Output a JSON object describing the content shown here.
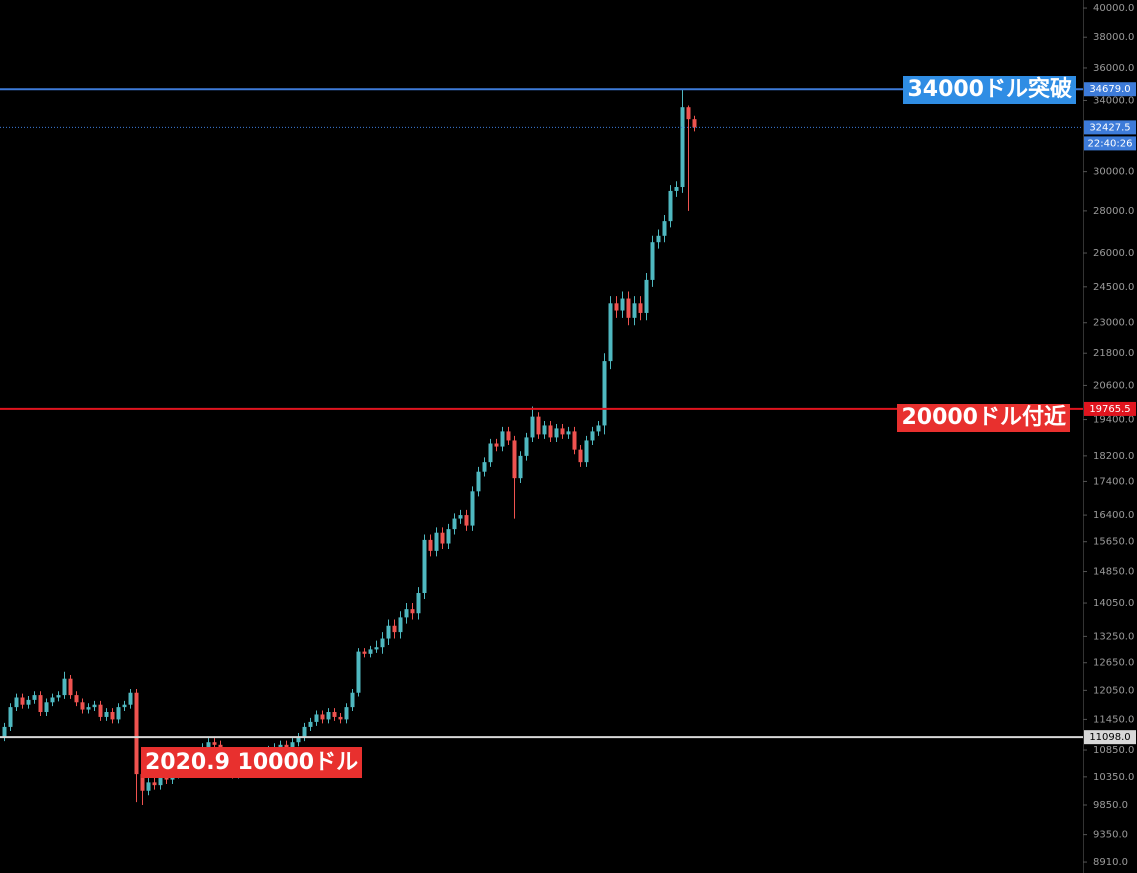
{
  "chart_data": {
    "type": "candlestick",
    "log_scale": true,
    "up_color": "#4fb8c0",
    "down_color": "#ef5350",
    "ylim": [
      8740,
      40570
    ],
    "yticks": [
      {
        "value": 40000,
        "label": "40000.0"
      },
      {
        "value": 38000,
        "label": "38000.0"
      },
      {
        "value": 36000,
        "label": "36000.0"
      },
      {
        "value": 34000,
        "label": "34000.0"
      },
      {
        "value": 30000,
        "label": "30000.0"
      },
      {
        "value": 28000,
        "label": "28000.0"
      },
      {
        "value": 26000,
        "label": "26000.0"
      },
      {
        "value": 24500,
        "label": "24500.0"
      },
      {
        "value": 23000,
        "label": "23000.0"
      },
      {
        "value": 21800,
        "label": "21800.0"
      },
      {
        "value": 20600,
        "label": "20600.0"
      },
      {
        "value": 19400,
        "label": "19400.0"
      },
      {
        "value": 18200,
        "label": "18200.0"
      },
      {
        "value": 17400,
        "label": "17400.0"
      },
      {
        "value": 16400,
        "label": "16400.0"
      },
      {
        "value": 15650,
        "label": "15650.0"
      },
      {
        "value": 14850,
        "label": "14850.0"
      },
      {
        "value": 14050,
        "label": "14050.0"
      },
      {
        "value": 13250,
        "label": "13250.0"
      },
      {
        "value": 12650,
        "label": "12650.0"
      },
      {
        "value": 12050,
        "label": "12050.0"
      },
      {
        "value": 11450,
        "label": "11450.0"
      },
      {
        "value": 10850,
        "label": "10850.0"
      },
      {
        "value": 10350,
        "label": "10350.0"
      },
      {
        "value": 9850,
        "label": "9850.0"
      },
      {
        "value": 9350,
        "label": "9350.0"
      },
      {
        "value": 8910,
        "label": "8910.0"
      }
    ],
    "levels": [
      {
        "value": 34679,
        "label": "34679.0",
        "color": "#3d7bd9",
        "style": "solid"
      },
      {
        "value": 32427.5,
        "label": "32427.5",
        "color": "#3d7bd9",
        "style": "dotted"
      },
      {
        "value": 19765.5,
        "label": "19765.5",
        "color": "#e0141e",
        "style": "solid"
      },
      {
        "value": 11098,
        "label": "11098.0",
        "color": "#d8d8d8",
        "style": "solid"
      }
    ],
    "countdown": "22:40:26",
    "annotations": [
      {
        "text": "34000ドル突破",
        "color": "#2f8de4"
      },
      {
        "text": "20000ドル付近",
        "color": "#e8302e"
      },
      {
        "text": "2020.9 10000ドル",
        "color": "#e8302e"
      }
    ],
    "open": [
      11100,
      11300,
      11700,
      11900,
      11750,
      11850,
      11950,
      11600,
      11800,
      11900,
      11950,
      12300,
      11950,
      11800,
      11650,
      11700,
      11750,
      11500,
      11600,
      11450,
      11700,
      11750,
      12000,
      10400,
      10100,
      10250,
      10200,
      10350,
      10300,
      10400,
      10450,
      10550,
      10700,
      10800,
      10900,
      11000,
      10950,
      10700,
      10600,
      10400,
      10500,
      10650,
      10750,
      10700,
      10800,
      10850,
      10900,
      10950,
      10900,
      11000,
      11100,
      11300,
      11400,
      11550,
      11450,
      11600,
      11500,
      11450,
      11700,
      12000,
      12900,
      12850,
      12950,
      13000,
      13200,
      13500,
      13350,
      13700,
      13900,
      13800,
      14300,
      15700,
      15400,
      15900,
      15600,
      16000,
      16300,
      16400,
      16100,
      17100,
      17700,
      18000,
      18600,
      18500,
      19000,
      18700,
      17500,
      18200,
      18800,
      19500,
      18900,
      19200,
      18800,
      19100,
      18900,
      19000,
      18400,
      18000,
      18700,
      19000,
      19200,
      21500,
      23800,
      23500,
      24000,
      23200,
      23800,
      23400,
      24800,
      26500,
      26800,
      27500,
      29000,
      29200,
      33600,
      32900
    ],
    "high": [
      11380,
      11780,
      11980,
      11980,
      11930,
      12030,
      12030,
      11880,
      11980,
      12030,
      12450,
      12380,
      12030,
      11880,
      11780,
      11830,
      11830,
      11680,
      11680,
      11780,
      11830,
      12080,
      12080,
      10480,
      10330,
      10330,
      10430,
      10430,
      10480,
      10530,
      10630,
      10780,
      10880,
      10980,
      11080,
      11080,
      11030,
      10780,
      10680,
      10580,
      10730,
      10830,
      10830,
      10880,
      10930,
      10980,
      11030,
      11030,
      11080,
      11180,
      11380,
      11480,
      11630,
      11630,
      11680,
      11680,
      11580,
      11780,
      12080,
      12980,
      12980,
      13030,
      13150,
      13350,
      13650,
      13650,
      13850,
      14050,
      14050,
      14450,
      15850,
      15850,
      16050,
      16050,
      16150,
      16450,
      16550,
      16550,
      17250,
      17850,
      18150,
      18750,
      18750,
      19150,
      19150,
      18850,
      18350,
      18950,
      19850,
      19650,
      19350,
      19350,
      19250,
      19250,
      19150,
      19150,
      18550,
      18850,
      19150,
      19350,
      21800,
      24100,
      24100,
      24300,
      24300,
      24100,
      24100,
      25100,
      26800,
      27100,
      27800,
      29300,
      29500,
      34679,
      33700,
      33100
    ],
    "low": [
      11020,
      11220,
      11620,
      11670,
      11670,
      11770,
      11520,
      11520,
      11720,
      11820,
      11870,
      11870,
      11720,
      11570,
      11570,
      11620,
      11420,
      11420,
      11370,
      11370,
      11620,
      11670,
      9900,
      9850,
      10020,
      10120,
      10120,
      10220,
      10220,
      10320,
      10370,
      10470,
      10620,
      10720,
      10820,
      10870,
      10620,
      10520,
      10320,
      10320,
      10420,
      10570,
      10620,
      10620,
      10720,
      10770,
      10820,
      10820,
      10820,
      10920,
      11020,
      11220,
      11320,
      11370,
      11370,
      11420,
      11370,
      11370,
      11620,
      11920,
      12770,
      12770,
      12870,
      12850,
      13050,
      13200,
      13200,
      13550,
      13650,
      13650,
      14150,
      15250,
      15250,
      15450,
      15450,
      15850,
      16150,
      15950,
      15950,
      16950,
      17550,
      17850,
      18350,
      18350,
      18550,
      16300,
      17350,
      18050,
      18650,
      18750,
      18750,
      18650,
      18650,
      18750,
      18750,
      18250,
      17850,
      17850,
      18550,
      18850,
      18900,
      21200,
      23200,
      23200,
      22900,
      22900,
      23100,
      23100,
      24500,
      26200,
      26500,
      27200,
      28700,
      28900,
      28000,
      32200
    ],
    "close": [
      11300,
      11700,
      11900,
      11750,
      11850,
      11950,
      11600,
      11800,
      11900,
      11950,
      12300,
      11950,
      11800,
      11650,
      11700,
      11750,
      11500,
      11600,
      11450,
      11700,
      11750,
      12000,
      10400,
      10100,
      10250,
      10200,
      10350,
      10300,
      10400,
      10450,
      10550,
      10700,
      10800,
      10900,
      11000,
      10950,
      10700,
      10600,
      10400,
      10500,
      10650,
      10750,
      10700,
      10800,
      10850,
      10900,
      10950,
      10900,
      11000,
      11100,
      11300,
      11400,
      11550,
      11450,
      11600,
      11500,
      11450,
      11700,
      12000,
      12900,
      12850,
      12950,
      13000,
      13200,
      13500,
      13350,
      13700,
      13900,
      13800,
      14300,
      15700,
      15400,
      15900,
      15600,
      16000,
      16300,
      16400,
      16100,
      17100,
      17700,
      18000,
      18600,
      18500,
      19000,
      18700,
      17500,
      18200,
      18800,
      19500,
      18900,
      19200,
      18800,
      19100,
      18900,
      19000,
      18400,
      18000,
      18700,
      19000,
      19200,
      21500,
      23800,
      23500,
      24000,
      23200,
      23800,
      23400,
      24800,
      26500,
      26800,
      27500,
      29000,
      29200,
      33600,
      32900,
      32427.5
    ]
  }
}
